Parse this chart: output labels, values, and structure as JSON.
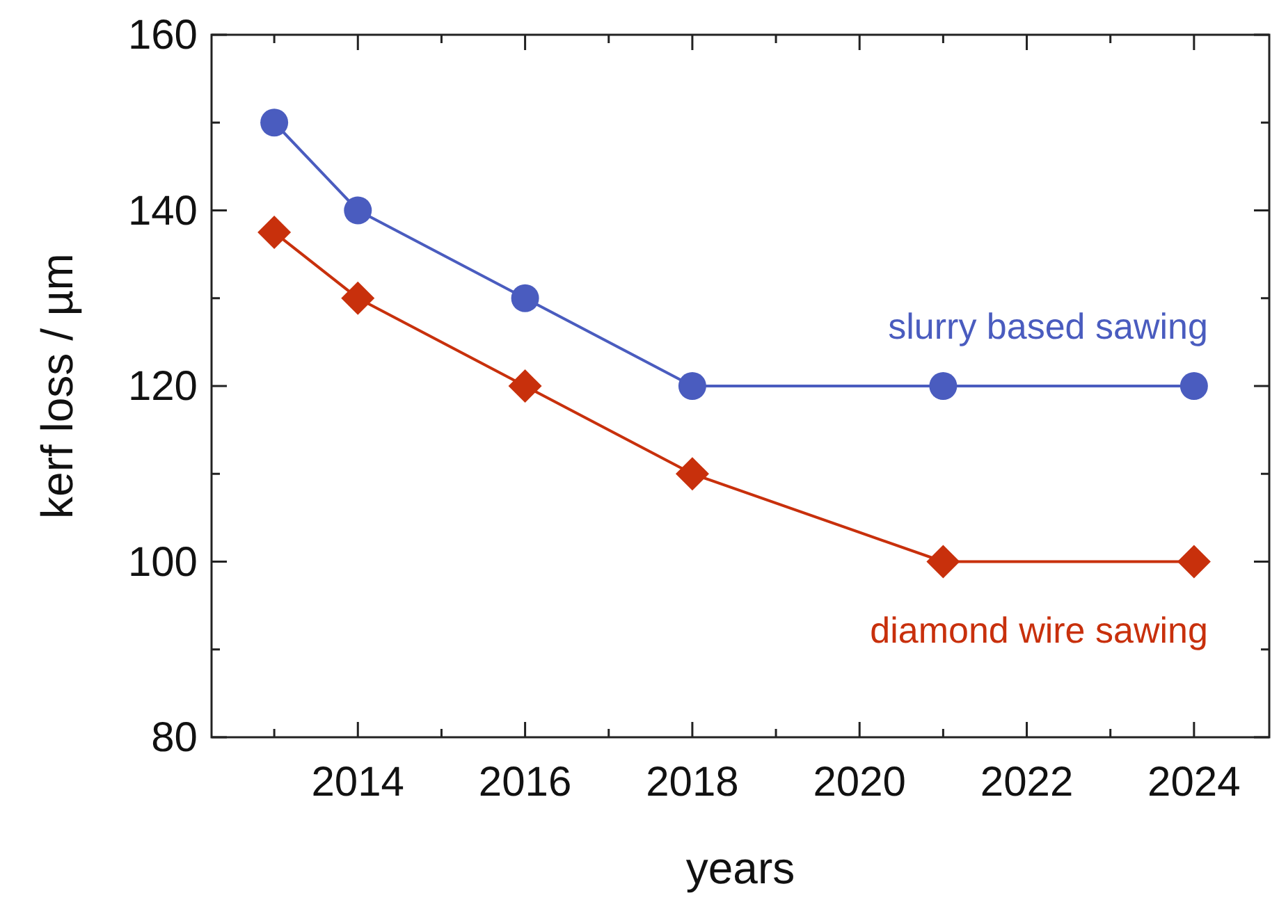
{
  "chart_data": {
    "type": "line",
    "xlabel": "years",
    "ylabel": "kerf loss / µm",
    "x": [
      2013,
      2014,
      2016,
      2018,
      2021,
      2024
    ],
    "series": [
      {
        "name": "slurry based sawing",
        "color": "#4a5cbf",
        "marker": "circle",
        "values": [
          150,
          140,
          130,
          120,
          120,
          120
        ]
      },
      {
        "name": "diamond wire sawing",
        "color": "#c8300c",
        "marker": "diamond",
        "values": [
          137.5,
          130,
          120,
          110,
          100,
          100
        ]
      }
    ],
    "xlim": [
      2012.25,
      2024.9
    ],
    "xticks": [
      {
        "value": 2013,
        "label": null
      },
      2014,
      {
        "value": 2015,
        "label": null
      },
      2016,
      {
        "value": 2017,
        "label": null
      },
      2018,
      {
        "value": 2019,
        "label": null
      },
      2020,
      {
        "value": 2021,
        "label": null
      },
      2022,
      {
        "value": 2023,
        "label": null
      },
      2024
    ],
    "ylim": [
      80,
      160
    ],
    "yticks": [
      80,
      {
        "value": 90,
        "label": null
      },
      100,
      {
        "value": 110,
        "label": null
      },
      120,
      {
        "value": 130,
        "label": null
      },
      140,
      {
        "value": 150,
        "label": null
      },
      160
    ],
    "grid": false,
    "line_style": "solid"
  }
}
